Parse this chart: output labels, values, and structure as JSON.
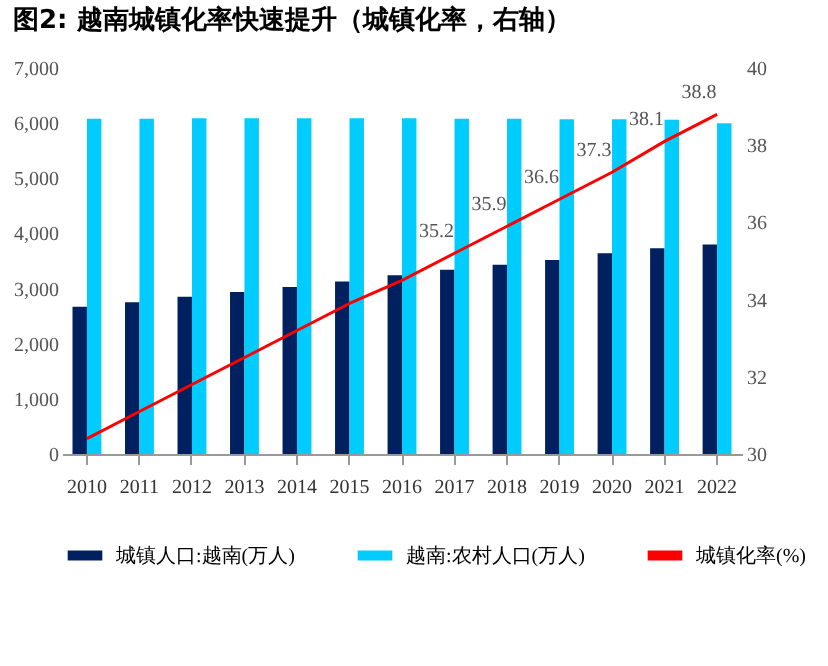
{
  "chart_data": {
    "type": "bar",
    "title": "图2: 越南城镇化率快速提升（城镇化率，右轴）",
    "categories": [
      "2010",
      "2011",
      "2012",
      "2013",
      "2014",
      "2015",
      "2016",
      "2017",
      "2018",
      "2019",
      "2020",
      "2021",
      "2022"
    ],
    "series": [
      {
        "name": "城镇人口:越南(万人)",
        "color": "#002060",
        "values": [
          2670,
          2750,
          2850,
          2940,
          3030,
          3130,
          3240,
          3340,
          3430,
          3520,
          3640,
          3730,
          3800
        ]
      },
      {
        "name": "越南:农村人口(万人)",
        "color": "#00ccff",
        "values": [
          6080,
          6080,
          6090,
          6090,
          6090,
          6090,
          6090,
          6080,
          6080,
          6070,
          6070,
          6060,
          6000
        ]
      },
      {
        "name": "城镇化率(%)",
        "type": "line",
        "axis": "y2",
        "color": "#ff0000",
        "values": [
          30.4,
          31.1,
          31.8,
          32.5,
          33.2,
          33.9,
          34.5,
          35.2,
          35.9,
          36.6,
          37.3,
          38.1,
          38.8
        ],
        "value_labels": [
          null,
          null,
          null,
          null,
          null,
          null,
          null,
          "35.2",
          "35.9",
          "36.6",
          "37.3",
          "38.1",
          "38.8"
        ]
      }
    ],
    "ylim": [
      0,
      7000
    ],
    "yticks": [
      0,
      {
        "value": 1000,
        "label": "1,000"
      },
      {
        "value": 2000,
        "label": "2,000"
      },
      {
        "value": 3000,
        "label": "3,000"
      },
      {
        "value": 4000,
        "label": "4,000"
      },
      {
        "value": 5000,
        "label": "5,000"
      },
      {
        "value": 6000,
        "label": "6,000"
      },
      {
        "value": 7000,
        "label": "7,000"
      }
    ],
    "y2lim": [
      30,
      40
    ],
    "y2ticks": [
      30,
      32,
      34,
      36,
      38,
      40
    ],
    "legend": "bottom",
    "grid": false
  }
}
